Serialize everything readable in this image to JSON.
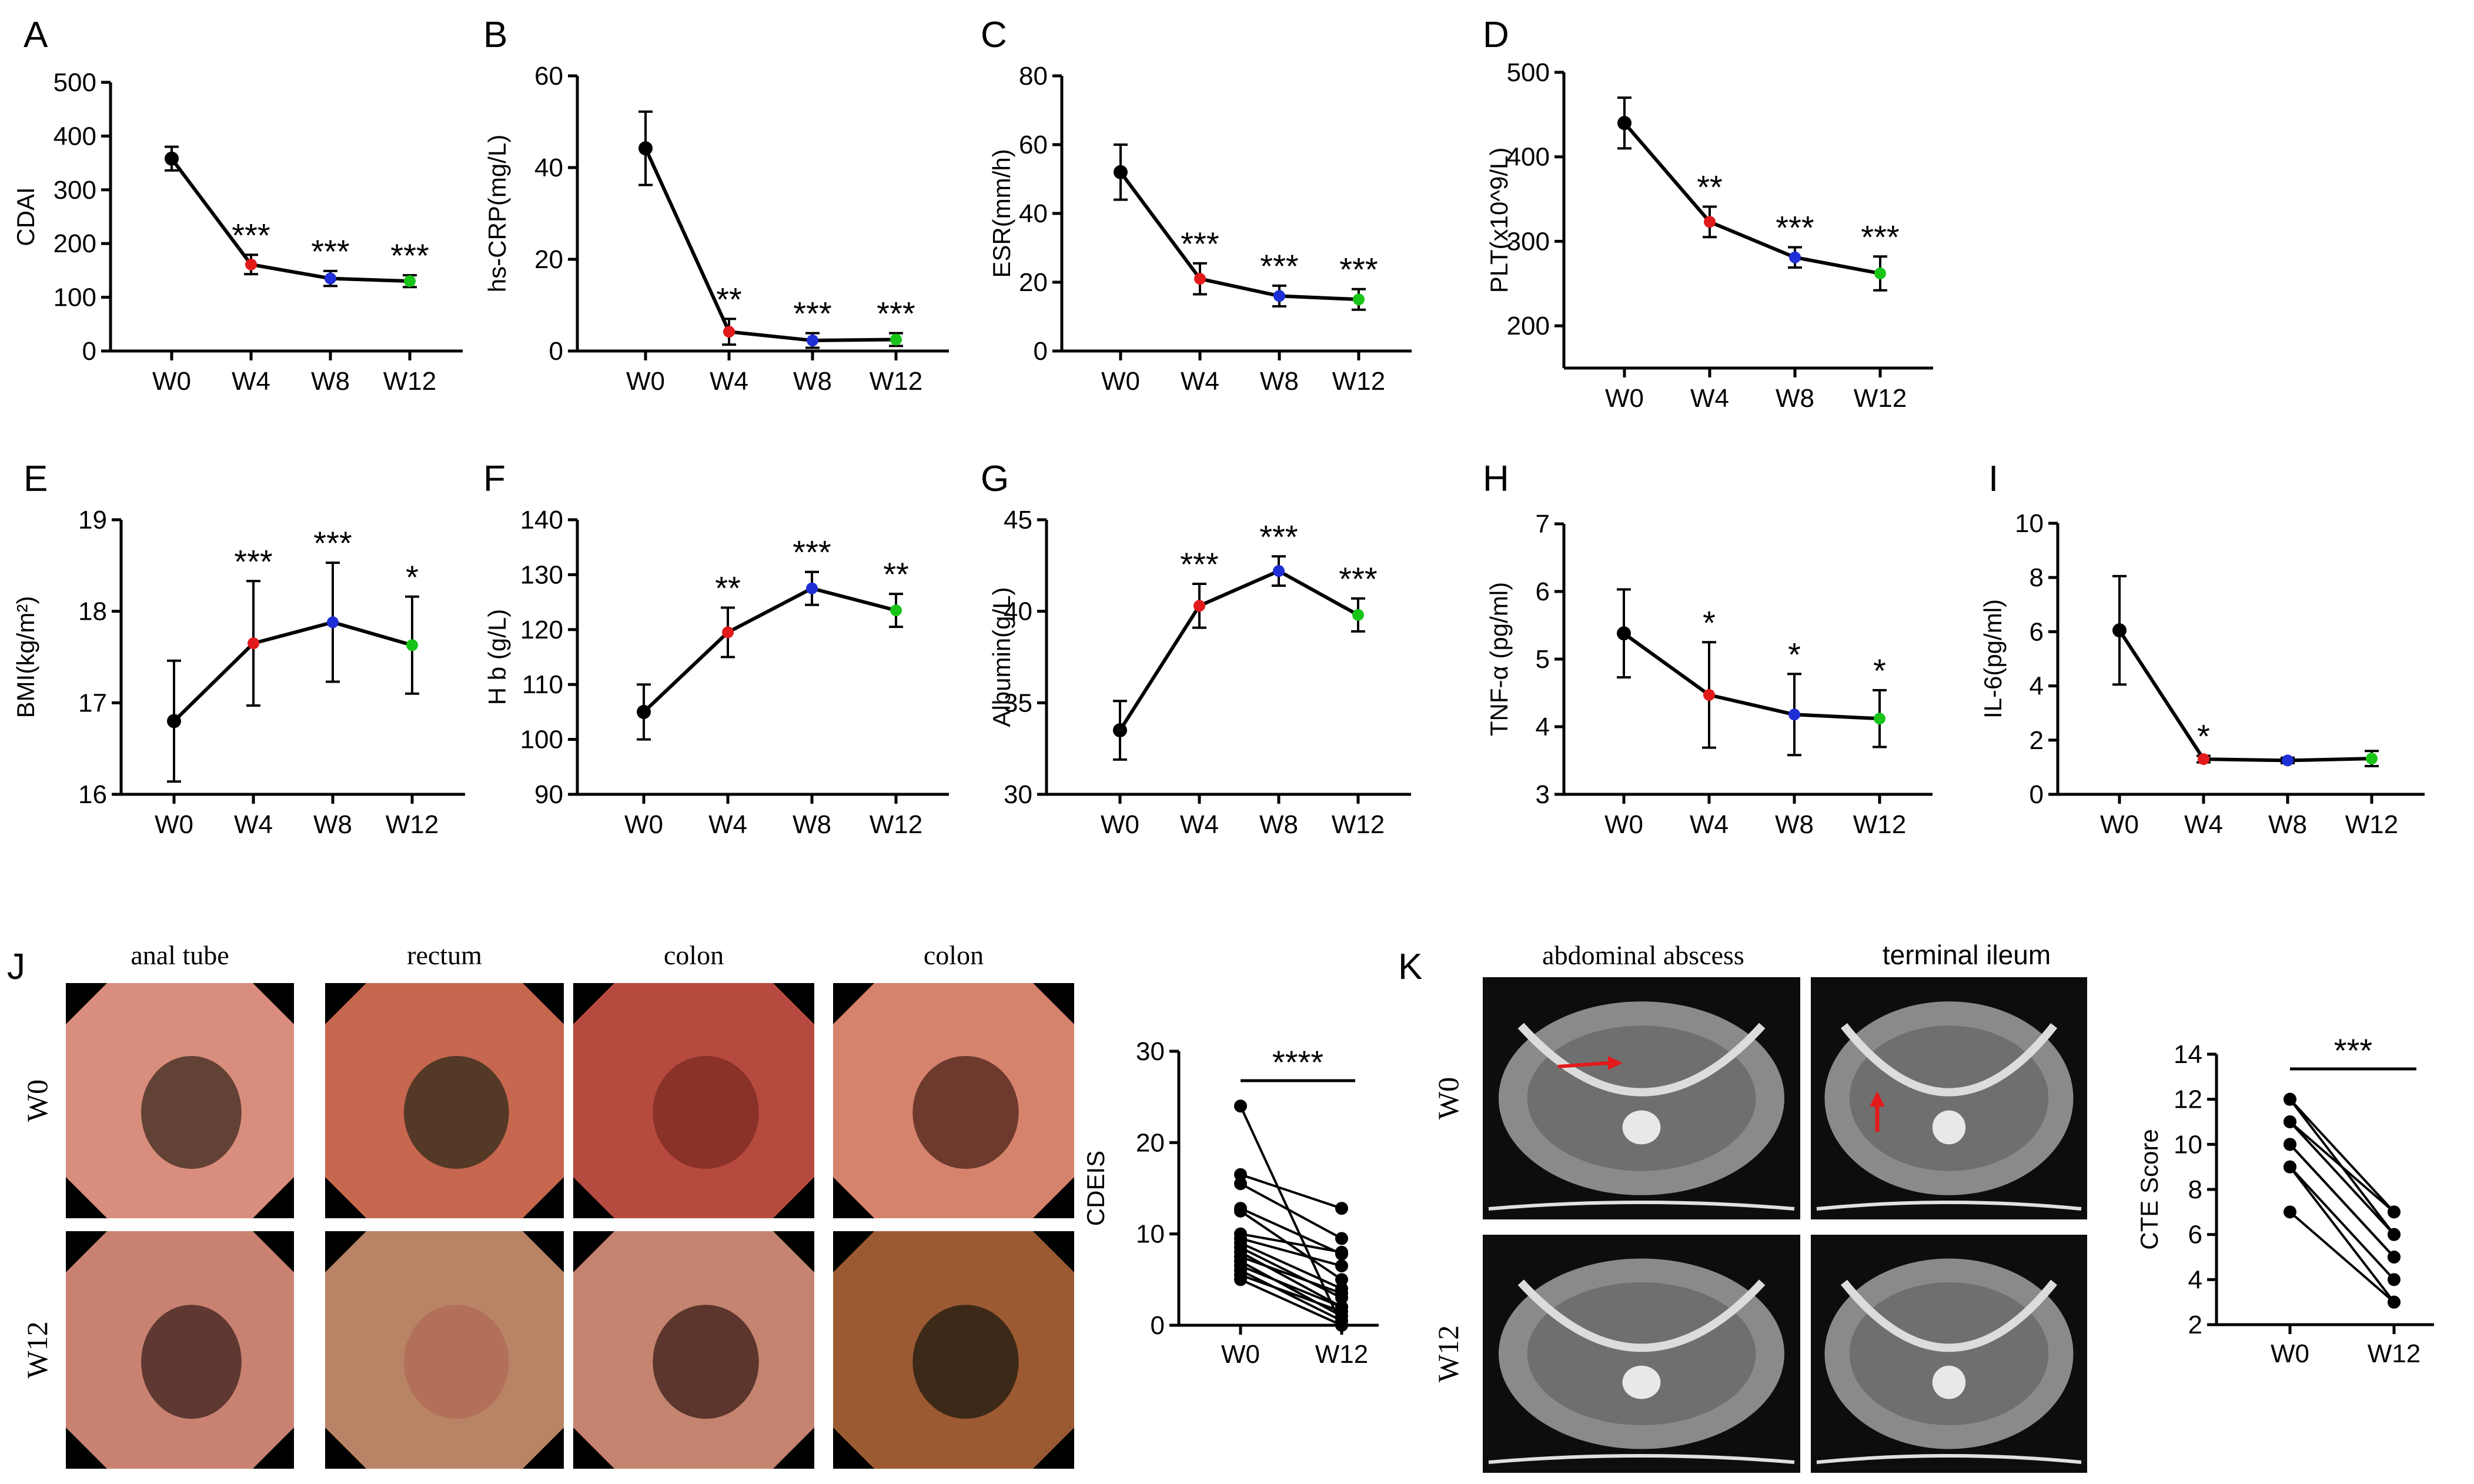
{
  "figure_title": "",
  "chart_data": [
    {
      "panel": "A",
      "type": "line",
      "ylabel": "CDAI",
      "ylim": [
        0,
        500
      ],
      "yticks": [
        0,
        100,
        200,
        300,
        400,
        500
      ],
      "categories": [
        "W0",
        "W4",
        "W8",
        "W12"
      ],
      "values": [
        358,
        161,
        135,
        130
      ],
      "errors": [
        22,
        18,
        14,
        11
      ],
      "point_colors": [
        "#000000",
        "#e31a1c",
        "#1f2fd6",
        "#18c418"
      ],
      "significance": [
        "",
        "***",
        "***",
        "***"
      ]
    },
    {
      "panel": "B",
      "type": "line",
      "ylabel": "hs-CRP(mg/L)",
      "ylim": [
        0,
        60
      ],
      "yticks": [
        0,
        20,
        40,
        60
      ],
      "categories": [
        "W0",
        "W4",
        "W8",
        "W12"
      ],
      "values": [
        44.2,
        4.2,
        2.3,
        2.5
      ],
      "errors": [
        8,
        2.8,
        1.6,
        1.4
      ],
      "point_colors": [
        "#000000",
        "#e31a1c",
        "#1f2fd6",
        "#18c418"
      ],
      "significance": [
        "",
        "**",
        "***",
        "***"
      ]
    },
    {
      "panel": "C",
      "type": "line",
      "ylabel": "ESR(mm/h)",
      "ylim": [
        0,
        80
      ],
      "yticks": [
        0,
        20,
        40,
        60,
        80
      ],
      "categories": [
        "W0",
        "W4",
        "W8",
        "W12"
      ],
      "values": [
        52,
        21,
        16,
        15
      ],
      "errors": [
        8,
        4.5,
        3,
        3
      ],
      "point_colors": [
        "#000000",
        "#e31a1c",
        "#1f2fd6",
        "#18c418"
      ],
      "significance": [
        "",
        "***",
        "***",
        "***"
      ]
    },
    {
      "panel": "D",
      "type": "line",
      "ylabel": "PLT(x10^9/L)",
      "ylim": [
        150,
        500
      ],
      "yticks": [
        200,
        300,
        400,
        500
      ],
      "categories": [
        "W0",
        "W4",
        "W8",
        "W12"
      ],
      "values": [
        440,
        323,
        281,
        262
      ],
      "errors": [
        30,
        18,
        12,
        20
      ],
      "point_colors": [
        "#000000",
        "#e31a1c",
        "#1f2fd6",
        "#18c418"
      ],
      "significance": [
        "",
        "**",
        "***",
        "***"
      ]
    },
    {
      "panel": "E",
      "type": "line",
      "ylabel": "BMI(kg/m²)",
      "ylim": [
        16,
        19
      ],
      "yticks": [
        16,
        17,
        18,
        19
      ],
      "categories": [
        "W0",
        "W4",
        "W8",
        "W12"
      ],
      "values": [
        16.8,
        17.65,
        17.88,
        17.63
      ],
      "errors": [
        0.66,
        0.68,
        0.65,
        0.53
      ],
      "point_colors": [
        "#000000",
        "#e31a1c",
        "#1f2fd6",
        "#18c418"
      ],
      "significance": [
        "",
        "***",
        "***",
        "*"
      ]
    },
    {
      "panel": "F",
      "type": "line",
      "ylabel": "H b (g/L)",
      "ylim": [
        90,
        140
      ],
      "yticks": [
        90,
        100,
        110,
        120,
        130,
        140
      ],
      "categories": [
        "W0",
        "W4",
        "W8",
        "W12"
      ],
      "values": [
        105,
        119.5,
        127.5,
        123.5
      ],
      "errors": [
        5,
        4.5,
        3,
        3
      ],
      "point_colors": [
        "#000000",
        "#e31a1c",
        "#1f2fd6",
        "#18c418"
      ],
      "significance": [
        "",
        "**",
        "***",
        "**"
      ]
    },
    {
      "panel": "G",
      "type": "line",
      "ylabel": "Albumin(g/L)",
      "ylim": [
        30,
        45
      ],
      "yticks": [
        30,
        35,
        40,
        45
      ],
      "categories": [
        "W0",
        "W4",
        "W8",
        "W12"
      ],
      "values": [
        33.5,
        40.3,
        42.2,
        39.8
      ],
      "errors": [
        1.6,
        1.2,
        0.8,
        0.9
      ],
      "point_colors": [
        "#000000",
        "#e31a1c",
        "#1f2fd6",
        "#18c418"
      ],
      "significance": [
        "",
        "***",
        "***",
        "***"
      ]
    },
    {
      "panel": "H",
      "type": "line",
      "ylabel": "TNF-α (pg/ml)",
      "ylim": [
        3,
        7
      ],
      "yticks": [
        3,
        4,
        5,
        6,
        7
      ],
      "categories": [
        "W0",
        "W4",
        "W8",
        "W12"
      ],
      "values": [
        5.38,
        4.47,
        4.18,
        4.12
      ],
      "errors": [
        0.65,
        0.78,
        0.6,
        0.42
      ],
      "point_colors": [
        "#000000",
        "#e31a1c",
        "#1f2fd6",
        "#18c418"
      ],
      "significance": [
        "",
        "*",
        "*",
        "*"
      ]
    },
    {
      "panel": "I",
      "type": "line",
      "ylabel": "IL-6(pg/ml)",
      "ylim": [
        0,
        10
      ],
      "yticks": [
        0,
        2,
        4,
        6,
        8,
        10
      ],
      "categories": [
        "W0",
        "W4",
        "W8",
        "W12"
      ],
      "values": [
        6.05,
        1.3,
        1.25,
        1.32
      ],
      "errors": [
        2,
        0.12,
        0.1,
        0.28
      ],
      "point_colors": [
        "#000000",
        "#e31a1c",
        "#1f2fd6",
        "#18c418"
      ],
      "significance": [
        "",
        "*",
        "",
        ""
      ]
    },
    {
      "panel": "J",
      "type": "scatter",
      "subtype": "paired",
      "ylabel": "CDEIS",
      "ylim": [
        0,
        30
      ],
      "yticks": [
        0,
        10,
        20,
        30
      ],
      "categories": [
        "W0",
        "W12"
      ],
      "pairs": [
        [
          24,
          0
        ],
        [
          16.5,
          12.8
        ],
        [
          15.5,
          9.5
        ],
        [
          12.8,
          7.8
        ],
        [
          12.5,
          5
        ],
        [
          10,
          8
        ],
        [
          9.5,
          6.5
        ],
        [
          9,
          4
        ],
        [
          8.5,
          3
        ],
        [
          8,
          2
        ],
        [
          7.5,
          3.5
        ],
        [
          7,
          1
        ],
        [
          6.5,
          2
        ],
        [
          6,
          0.5
        ],
        [
          5.5,
          1.5
        ],
        [
          5,
          0
        ]
      ],
      "significance": "****"
    },
    {
      "panel": "K",
      "type": "scatter",
      "subtype": "paired",
      "ylabel": "CTE Score",
      "ylim": [
        2,
        14
      ],
      "yticks": [
        2,
        4,
        6,
        8,
        10,
        12,
        14
      ],
      "categories": [
        "W0",
        "W12"
      ],
      "pairs": [
        [
          12,
          7
        ],
        [
          12,
          6
        ],
        [
          11,
          7
        ],
        [
          11,
          6
        ],
        [
          10,
          5
        ],
        [
          10,
          5
        ],
        [
          9,
          4
        ],
        [
          9,
          3
        ],
        [
          7,
          3
        ]
      ],
      "significance": "***"
    }
  ],
  "photos": {
    "J": {
      "columns": [
        "anal tube",
        "rectum",
        "colon",
        "colon"
      ],
      "rows": [
        "W0",
        "W12"
      ]
    },
    "K": {
      "columns": [
        "abdominal abscess",
        "terminal ileum"
      ],
      "rows": [
        "W0",
        "W12"
      ]
    }
  },
  "colors": {
    "red": "#e31a1c",
    "blue": "#1f2fd6",
    "green": "#18c418",
    "ink": "#000000"
  }
}
